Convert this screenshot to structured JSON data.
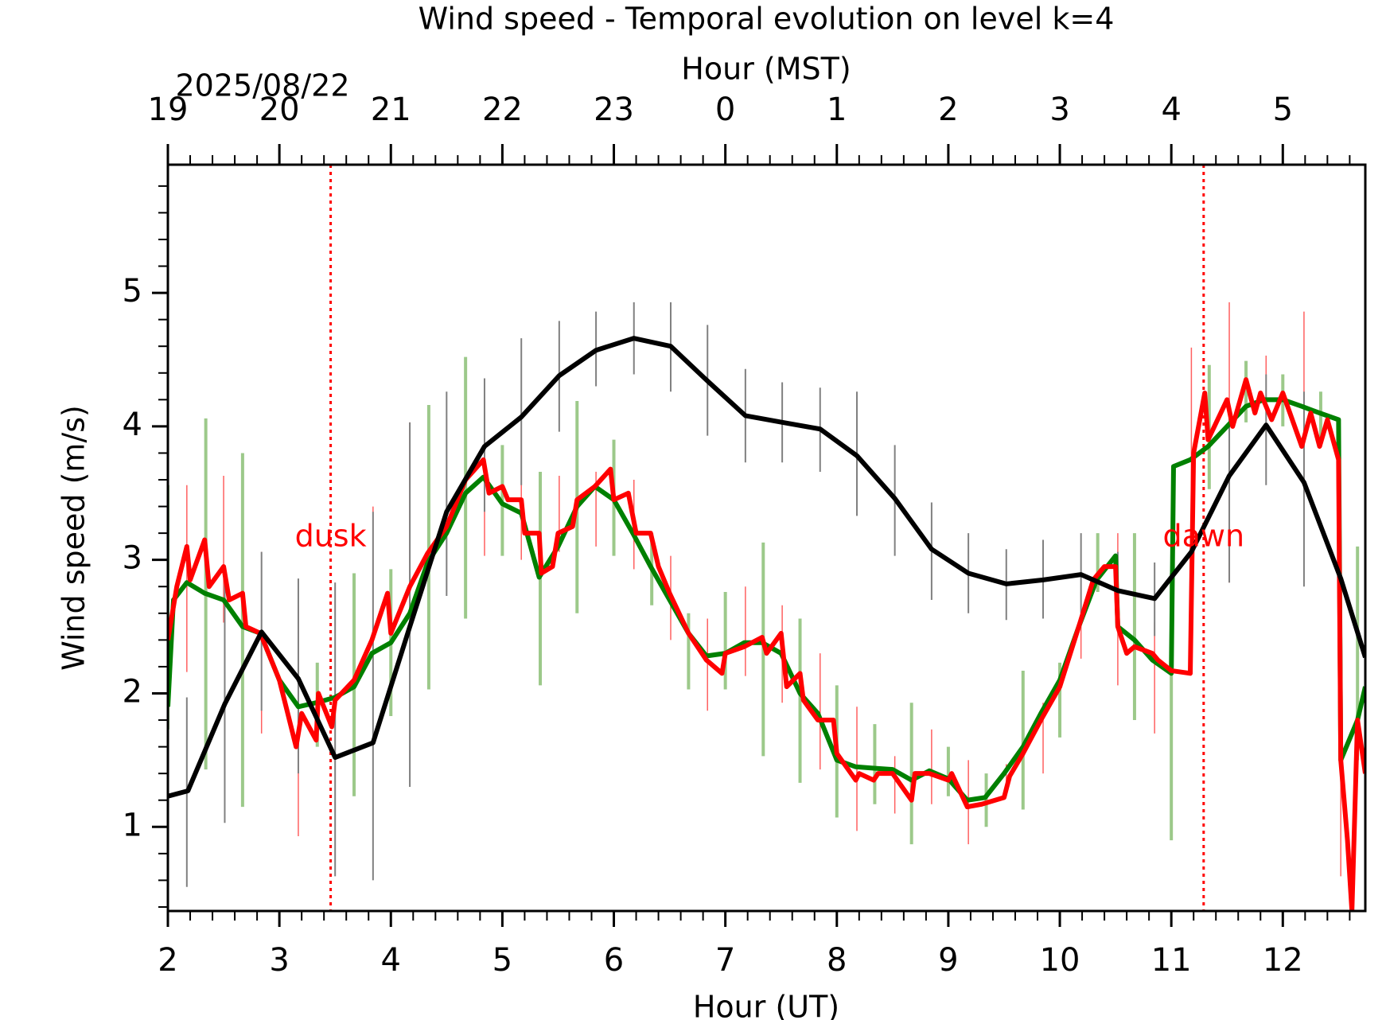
{
  "chart_data": {
    "type": "line",
    "title": "Wind speed - Temporal evolution on level k=4",
    "xlabel": "Hour (UT)",
    "x2label": "Hour (MST)",
    "ylabel": "Wind speed (m/s)",
    "date_label": "2025/08/22",
    "xlim": [
      2,
      12.74
    ],
    "ylim": [
      0.37,
      5.96
    ],
    "xticks": [
      2,
      3,
      4,
      5,
      6,
      7,
      8,
      9,
      10,
      11,
      12
    ],
    "x2ticks": [
      {
        "value": 2,
        "label": "19"
      },
      {
        "value": 3,
        "label": "20"
      },
      {
        "value": 4,
        "label": "21"
      },
      {
        "value": 5,
        "label": "22"
      },
      {
        "value": 6,
        "label": "23"
      },
      {
        "value": 7,
        "label": "0"
      },
      {
        "value": 8,
        "label": "1"
      },
      {
        "value": 9,
        "label": "2"
      },
      {
        "value": 10,
        "label": "3"
      },
      {
        "value": 11,
        "label": "4"
      },
      {
        "value": 12,
        "label": "5"
      }
    ],
    "xminorticks": [
      2.2,
      2.4,
      2.6,
      2.8,
      3.2,
      3.4,
      3.6,
      3.8,
      4.2,
      4.4,
      4.6,
      4.8,
      5.2,
      5.4,
      5.6,
      5.8,
      6.2,
      6.4,
      6.6,
      6.8,
      7.2,
      7.4,
      7.6,
      7.8,
      8.2,
      8.4,
      8.6,
      8.8,
      9.2,
      9.4,
      9.6,
      9.8,
      10.2,
      10.4,
      10.6,
      10.8,
      11.2,
      11.4,
      11.6,
      11.8,
      12.2,
      12.4,
      12.6
    ],
    "yticks": [
      1,
      2,
      3,
      4,
      5
    ],
    "yminorticks": [
      0.4,
      0.6,
      0.8,
      1.2,
      1.4,
      1.6,
      1.8,
      2.2,
      2.4,
      2.6,
      2.8,
      3.2,
      3.4,
      3.6,
      3.8,
      4.2,
      4.4,
      4.6,
      4.8,
      5.2,
      5.4,
      5.6,
      5.8
    ],
    "vlines": [
      {
        "x": 3.46,
        "label": "dusk",
        "color": "#ff0000"
      },
      {
        "x": 11.29,
        "label": "dawn",
        "color": "#ff0000"
      }
    ],
    "series": [
      {
        "color": "#008000",
        "width": 6,
        "x": [
          2.0,
          2.05,
          2.17,
          2.33,
          2.5,
          2.67,
          2.83,
          3.0,
          3.17,
          3.33,
          3.5,
          3.67,
          3.83,
          4.0,
          4.17,
          4.33,
          4.5,
          4.67,
          4.83,
          5.0,
          5.17,
          5.33,
          5.5,
          5.67,
          5.83,
          6.0,
          6.17,
          6.33,
          6.5,
          6.67,
          6.83,
          7.0,
          7.17,
          7.33,
          7.5,
          7.67,
          7.83,
          8.0,
          8.17,
          8.33,
          8.5,
          8.67,
          8.83,
          9.0,
          9.17,
          9.33,
          9.5,
          9.67,
          9.83,
          10.0,
          10.17,
          10.33,
          10.5,
          10.52,
          10.67,
          10.83,
          11.0,
          11.02,
          11.17,
          11.33,
          11.5,
          11.67,
          11.83,
          12.0,
          12.17,
          12.33,
          12.5,
          12.52,
          12.67,
          12.74
        ],
        "values": [
          1.9,
          2.7,
          2.83,
          2.75,
          2.7,
          2.5,
          2.45,
          2.1,
          1.9,
          1.93,
          1.97,
          2.05,
          2.3,
          2.38,
          2.6,
          2.98,
          3.2,
          3.5,
          3.62,
          3.42,
          3.35,
          2.87,
          3.1,
          3.4,
          3.55,
          3.45,
          3.2,
          2.95,
          2.7,
          2.45,
          2.28,
          2.3,
          2.38,
          2.38,
          2.3,
          2.0,
          1.85,
          1.5,
          1.45,
          1.44,
          1.43,
          1.35,
          1.42,
          1.36,
          1.2,
          1.22,
          1.4,
          1.6,
          1.85,
          2.1,
          2.5,
          2.85,
          3.03,
          2.5,
          2.4,
          2.25,
          2.15,
          3.7,
          3.75,
          3.85,
          4.0,
          4.15,
          4.2,
          4.2,
          4.15,
          4.1,
          4.05,
          1.5,
          1.8,
          2.05
        ],
        "error_bars": {
          "color": "#9cc98a",
          "width": 4,
          "x": [
            2.0,
            2.34,
            2.67,
            3.34,
            3.67,
            4.0,
            4.34,
            4.67,
            5.0,
            5.34,
            5.67,
            6.0,
            6.34,
            6.67,
            7.0,
            7.34,
            7.67,
            8.0,
            8.34,
            8.67,
            9.0,
            9.34,
            9.67,
            10.0,
            10.34,
            10.67,
            11.0,
            11.34,
            11.67,
            12.0,
            12.34,
            12.67
          ],
          "low": [
            1.73,
            1.43,
            1.15,
            1.6,
            1.23,
            1.83,
            2.03,
            2.56,
            3.03,
            2.06,
            2.6,
            3.03,
            2.66,
            2.03,
            2.03,
            1.53,
            1.33,
            1.07,
            1.17,
            0.87,
            1.23,
            1.0,
            1.13,
            1.67,
            2.76,
            1.8,
            0.9,
            3.53,
            4.03,
            4.0,
            3.86,
            1.5
          ],
          "high": [
            3.56,
            4.06,
            3.8,
            2.23,
            2.9,
            2.93,
            4.16,
            4.52,
            3.86,
            3.66,
            4.19,
            3.9,
            3.2,
            2.6,
            2.76,
            3.13,
            2.56,
            2.06,
            1.77,
            1.93,
            1.6,
            1.4,
            2.17,
            2.23,
            3.2,
            3.2,
            2.9,
            4.46,
            4.49,
            4.39,
            4.26,
            3.1
          ]
        }
      },
      {
        "color": "#ff0000",
        "width": 6,
        "x": [
          2.0,
          2.08,
          2.17,
          2.2,
          2.33,
          2.37,
          2.5,
          2.55,
          2.67,
          2.7,
          2.83,
          3.0,
          3.15,
          3.2,
          3.33,
          3.35,
          3.47,
          3.5,
          3.67,
          3.83,
          3.97,
          4.0,
          4.17,
          4.33,
          4.5,
          4.67,
          4.83,
          4.88,
          5.0,
          5.05,
          5.17,
          5.2,
          5.33,
          5.35,
          5.45,
          5.5,
          5.63,
          5.67,
          5.83,
          5.97,
          6.0,
          6.13,
          6.2,
          6.33,
          6.4,
          6.5,
          6.67,
          6.83,
          6.97,
          7.0,
          7.17,
          7.33,
          7.37,
          7.5,
          7.55,
          7.67,
          7.7,
          7.83,
          7.97,
          8.0,
          8.17,
          8.2,
          8.33,
          8.37,
          8.5,
          8.67,
          8.7,
          8.83,
          9.0,
          9.03,
          9.17,
          9.3,
          9.5,
          9.55,
          9.67,
          9.83,
          10.0,
          10.17,
          10.3,
          10.4,
          10.5,
          10.52,
          10.6,
          10.67,
          10.83,
          10.88,
          11.0,
          11.17,
          11.2,
          11.3,
          11.33,
          11.5,
          11.55,
          11.67,
          11.75,
          11.8,
          11.9,
          12.0,
          12.17,
          12.25,
          12.33,
          12.4,
          12.5,
          12.52,
          12.58,
          12.62,
          12.67,
          12.74
        ],
        "values": [
          2.4,
          2.8,
          3.1,
          2.85,
          3.15,
          2.8,
          2.95,
          2.7,
          2.75,
          2.5,
          2.45,
          2.1,
          1.6,
          1.85,
          1.65,
          2.0,
          1.75,
          1.95,
          2.1,
          2.4,
          2.75,
          2.45,
          2.8,
          3.05,
          3.25,
          3.6,
          3.75,
          3.5,
          3.55,
          3.45,
          3.45,
          3.2,
          3.2,
          2.9,
          2.95,
          3.2,
          3.25,
          3.45,
          3.55,
          3.68,
          3.45,
          3.5,
          3.2,
          3.2,
          2.95,
          2.75,
          2.45,
          2.25,
          2.15,
          2.3,
          2.35,
          2.42,
          2.3,
          2.45,
          2.05,
          2.15,
          1.95,
          1.8,
          1.8,
          1.55,
          1.35,
          1.4,
          1.35,
          1.4,
          1.4,
          1.2,
          1.4,
          1.4,
          1.35,
          1.4,
          1.15,
          1.17,
          1.22,
          1.38,
          1.55,
          1.8,
          2.05,
          2.5,
          2.85,
          2.95,
          2.95,
          2.5,
          2.3,
          2.35,
          2.3,
          2.25,
          2.17,
          2.15,
          3.8,
          4.25,
          3.9,
          4.2,
          4.0,
          4.35,
          4.1,
          4.25,
          4.05,
          4.25,
          3.85,
          4.1,
          3.85,
          4.05,
          3.75,
          1.5,
          0.9,
          0.37,
          1.8,
          1.4
        ],
        "error_bars": {
          "color": "#ff6060",
          "width": 1.5,
          "x": [
            2.17,
            2.5,
            2.84,
            3.17,
            3.5,
            3.84,
            4.17,
            4.5,
            4.84,
            5.17,
            5.51,
            5.84,
            6.18,
            6.51,
            6.84,
            7.18,
            7.51,
            7.85,
            8.18,
            8.52,
            8.85,
            9.18,
            9.52,
            9.85,
            10.19,
            10.52,
            10.85,
            11.18,
            11.52,
            11.85,
            12.19,
            12.52
          ],
          "low": [
            2.16,
            2.53,
            1.7,
            0.93,
            1.17,
            1.93,
            2.63,
            2.76,
            3.03,
            3.0,
            3.06,
            3.1,
            2.93,
            2.4,
            1.87,
            2.13,
            1.93,
            1.43,
            0.97,
            1.1,
            1.17,
            0.87,
            1.23,
            1.4,
            2.26,
            2.06,
            1.7,
            2.4,
            2.83,
            4.16,
            3.3,
            0.63
          ],
          "high": [
            3.56,
            3.63,
            3.06,
            2.66,
            2.83,
            3.4,
            4.03,
            4.06,
            4.1,
            4.0,
            3.63,
            3.66,
            3.6,
            3.03,
            2.56,
            2.8,
            2.66,
            2.3,
            1.9,
            1.53,
            1.73,
            1.5,
            1.47,
            1.93,
            2.76,
            3.2,
            2.53,
            4.59,
            4.93,
            4.53,
            4.86,
            3.4
          ]
        }
      },
      {
        "color": "#000000",
        "width": 6,
        "x": [
          2.0,
          2.18,
          2.51,
          2.84,
          3.17,
          3.5,
          3.84,
          4.17,
          4.5,
          4.84,
          5.17,
          5.51,
          5.84,
          6.18,
          6.51,
          6.84,
          7.18,
          7.51,
          7.85,
          8.18,
          8.52,
          8.85,
          9.18,
          9.52,
          9.85,
          10.19,
          10.52,
          10.85,
          11.18,
          11.52,
          11.85,
          12.19,
          12.52,
          12.74
        ],
        "values": [
          1.23,
          1.27,
          1.92,
          2.46,
          2.11,
          1.52,
          1.63,
          2.5,
          3.36,
          3.85,
          4.07,
          4.38,
          4.57,
          4.66,
          4.6,
          4.34,
          4.08,
          4.03,
          3.98,
          3.78,
          3.46,
          3.08,
          2.9,
          2.82,
          2.85,
          2.89,
          2.77,
          2.71,
          3.06,
          3.63,
          4.01,
          3.58,
          2.86,
          2.27
        ],
        "error_bars": {
          "color": "#808080",
          "width": 2,
          "x": [
            2.17,
            2.51,
            2.84,
            3.17,
            3.5,
            3.84,
            4.17,
            4.5,
            4.84,
            5.17,
            5.51,
            5.84,
            6.18,
            6.51,
            6.84,
            7.18,
            7.51,
            7.85,
            8.18,
            8.52,
            8.85,
            9.18,
            9.52,
            9.85,
            10.19,
            10.52,
            10.85,
            11.52,
            11.85,
            12.19
          ],
          "low": [
            0.55,
            1.03,
            1.87,
            1.4,
            0.63,
            0.6,
            1.3,
            2.73,
            3.36,
            3.56,
            3.96,
            4.3,
            4.39,
            4.26,
            3.93,
            3.73,
            3.73,
            3.66,
            3.33,
            3.03,
            2.7,
            2.6,
            2.55,
            2.56,
            2.6,
            2.46,
            2.43,
            2.83,
            3.56,
            2.8
          ],
          "high": [
            1.97,
            2.83,
            3.06,
            2.86,
            2.83,
            3.36,
            4.03,
            4.26,
            4.36,
            4.66,
            4.79,
            4.86,
            4.93,
            4.93,
            4.76,
            4.43,
            4.33,
            4.29,
            4.26,
            3.86,
            3.43,
            3.2,
            3.08,
            3.15,
            3.2,
            3.06,
            2.98,
            4.16,
            4.39,
            4.26
          ]
        }
      }
    ]
  }
}
